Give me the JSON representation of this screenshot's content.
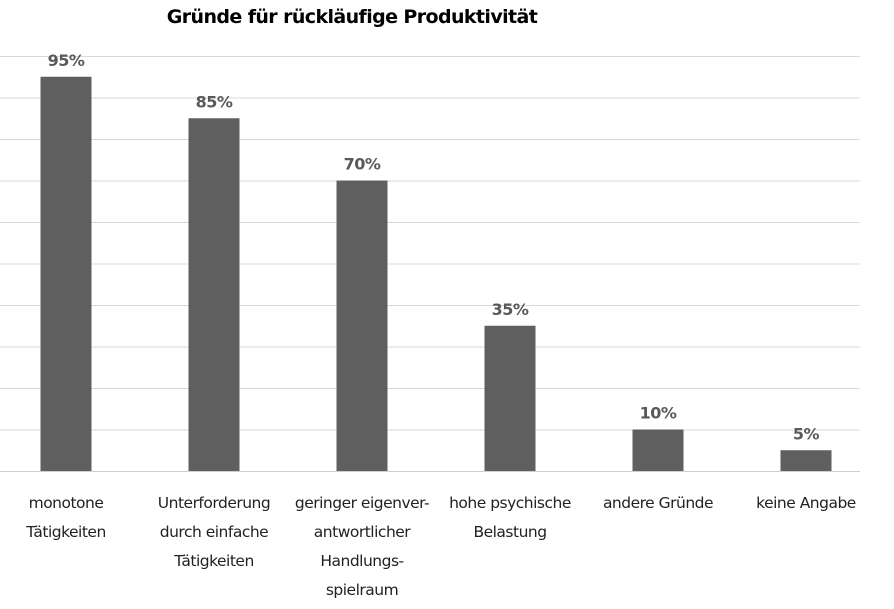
{
  "chart_data": {
    "type": "bar",
    "title": "Gründe für rückläufige Produktivität",
    "categories": [
      [
        "monotone",
        "Tätigkeiten"
      ],
      [
        "Unterforderung",
        "durch einfache",
        "Tätigkeiten"
      ],
      [
        "geringer eigenver-",
        "antwortlicher",
        "Handlungs-",
        "spielraum"
      ],
      [
        "hohe psychische",
        "Belastung"
      ],
      [
        "andere Gründe"
      ],
      [
        "keine Angabe"
      ]
    ],
    "values": [
      95,
      85,
      70,
      35,
      10,
      5
    ],
    "data_labels": [
      "95%",
      "85%",
      "70%",
      "35%",
      "10%",
      "5%"
    ],
    "ylim": [
      0,
      100
    ],
    "ytick_step": 10,
    "grid": true,
    "xlabel": "",
    "ylabel": "",
    "colors": {
      "bar": "#5f5f5f",
      "grid": "#d9d9d9",
      "label": "#595959"
    }
  }
}
